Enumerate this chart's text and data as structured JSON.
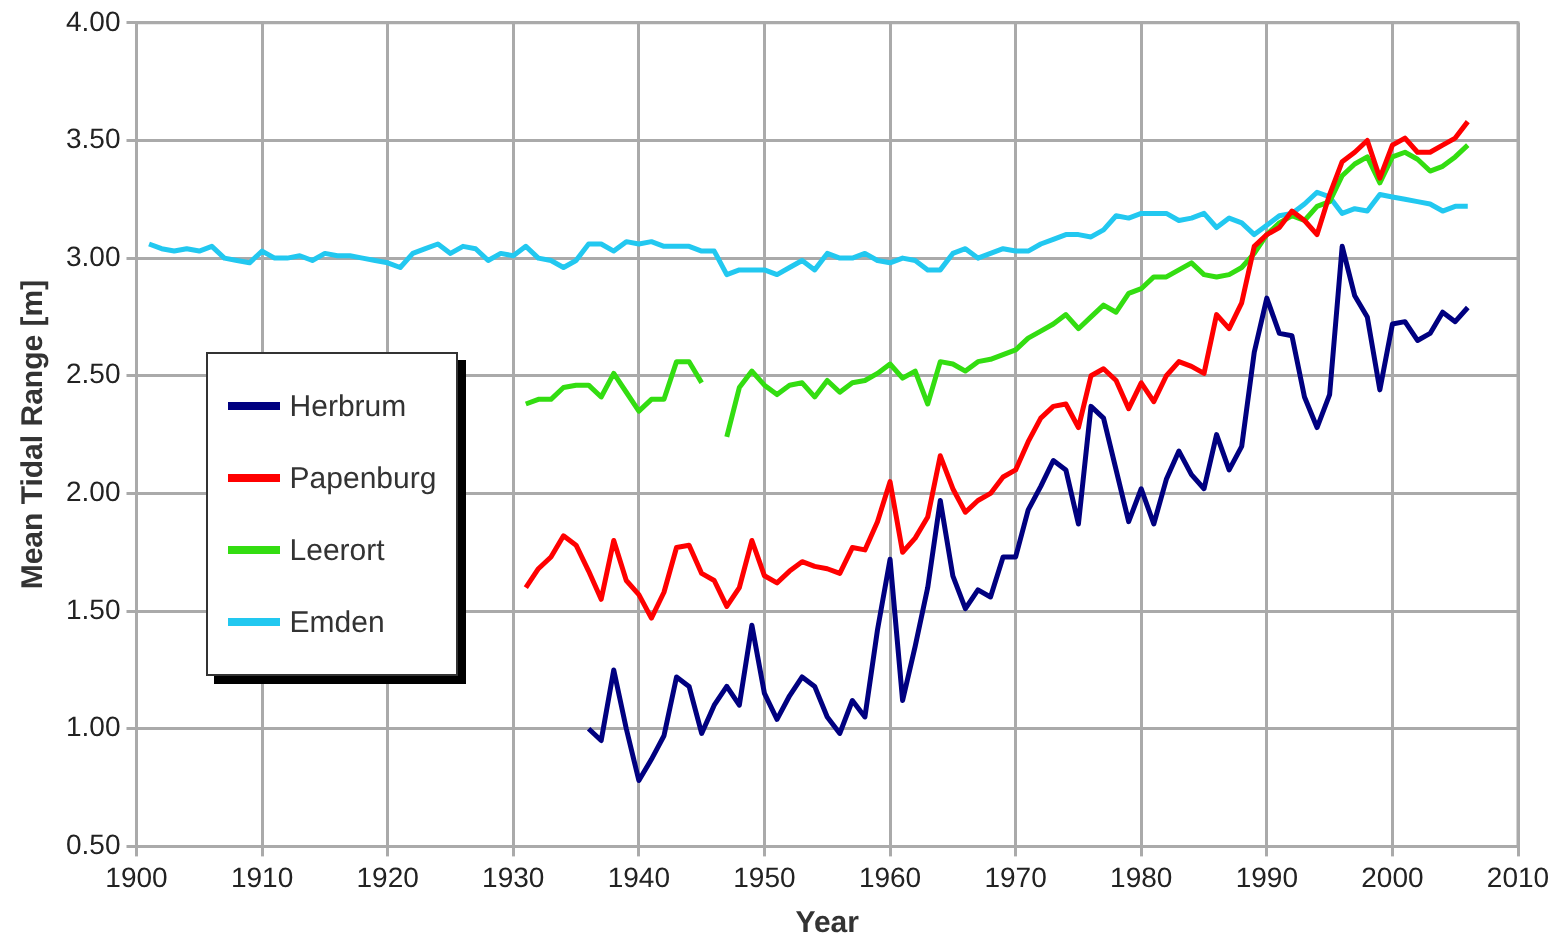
{
  "chart_data": {
    "type": "line",
    "xlabel": "Year",
    "ylabel": "Mean Tidal Range [m]",
    "x": [
      1901,
      1902,
      1903,
      1904,
      1905,
      1906,
      1907,
      1908,
      1909,
      1910,
      1911,
      1912,
      1913,
      1914,
      1915,
      1916,
      1917,
      1918,
      1919,
      1920,
      1921,
      1922,
      1923,
      1924,
      1925,
      1926,
      1927,
      1928,
      1929,
      1930,
      1931,
      1932,
      1933,
      1934,
      1935,
      1936,
      1937,
      1938,
      1939,
      1940,
      1941,
      1942,
      1943,
      1944,
      1945,
      1946,
      1947,
      1948,
      1949,
      1950,
      1951,
      1952,
      1953,
      1954,
      1955,
      1956,
      1957,
      1958,
      1959,
      1960,
      1961,
      1962,
      1963,
      1964,
      1965,
      1966,
      1967,
      1968,
      1969,
      1970,
      1971,
      1972,
      1973,
      1974,
      1975,
      1976,
      1977,
      1978,
      1979,
      1980,
      1981,
      1982,
      1983,
      1984,
      1985,
      1986,
      1987,
      1988,
      1989,
      1990,
      1991,
      1992,
      1993,
      1994,
      1995,
      1996,
      1997,
      1998,
      1999,
      2000,
      2001,
      2002,
      2003,
      2004,
      2005,
      2006
    ],
    "series": [
      {
        "name": "Herbrum",
        "color": "#000080",
        "values": [
          null,
          null,
          null,
          null,
          null,
          null,
          null,
          null,
          null,
          null,
          null,
          null,
          null,
          null,
          null,
          null,
          null,
          null,
          null,
          null,
          null,
          null,
          null,
          null,
          null,
          null,
          null,
          null,
          null,
          null,
          null,
          null,
          null,
          null,
          null,
          1.0,
          0.95,
          1.25,
          1.0,
          0.78,
          0.87,
          0.97,
          1.22,
          1.18,
          0.98,
          1.1,
          1.18,
          1.1,
          1.44,
          1.15,
          1.04,
          1.14,
          1.22,
          1.18,
          1.05,
          0.98,
          1.12,
          1.05,
          1.42,
          1.72,
          1.12,
          1.35,
          1.6,
          1.97,
          1.65,
          1.51,
          1.59,
          1.56,
          1.73,
          1.73,
          1.93,
          2.03,
          2.14,
          2.1,
          1.87,
          2.37,
          2.32,
          2.1,
          1.88,
          2.02,
          1.87,
          2.06,
          2.18,
          2.08,
          2.02,
          2.25,
          2.1,
          2.2,
          2.6,
          2.83,
          2.68,
          2.67,
          2.41,
          2.28,
          2.42,
          3.05,
          2.84,
          2.75,
          2.44,
          2.72,
          2.73,
          2.65,
          2.68,
          2.77,
          2.73,
          2.79
        ]
      },
      {
        "name": "Papenburg",
        "color": "#ff0000",
        "values": [
          null,
          null,
          null,
          null,
          null,
          null,
          null,
          null,
          null,
          null,
          null,
          null,
          null,
          null,
          null,
          null,
          null,
          null,
          null,
          null,
          null,
          null,
          null,
          null,
          null,
          null,
          null,
          null,
          null,
          null,
          1.6,
          1.68,
          1.73,
          1.82,
          1.78,
          1.67,
          1.55,
          1.8,
          1.63,
          1.57,
          1.47,
          1.58,
          1.77,
          1.78,
          1.66,
          1.63,
          1.52,
          1.6,
          1.8,
          1.65,
          1.62,
          1.67,
          1.71,
          1.69,
          1.68,
          1.66,
          1.77,
          1.76,
          1.88,
          2.05,
          1.75,
          1.81,
          1.9,
          2.16,
          2.02,
          1.92,
          1.97,
          2.0,
          2.07,
          2.1,
          2.22,
          2.32,
          2.37,
          2.38,
          2.28,
          2.5,
          2.53,
          2.48,
          2.36,
          2.47,
          2.39,
          2.5,
          2.56,
          2.54,
          2.51,
          2.76,
          2.7,
          2.81,
          3.05,
          3.1,
          3.13,
          3.2,
          3.16,
          3.1,
          3.27,
          3.41,
          3.45,
          3.5,
          3.34,
          3.48,
          3.51,
          3.45,
          3.45,
          3.48,
          3.51,
          3.58
        ]
      },
      {
        "name": "Leerort",
        "color": "#33dd11",
        "values": [
          null,
          null,
          null,
          null,
          null,
          null,
          null,
          null,
          null,
          null,
          null,
          null,
          null,
          null,
          null,
          null,
          null,
          null,
          null,
          null,
          null,
          null,
          null,
          null,
          null,
          null,
          null,
          null,
          null,
          null,
          2.38,
          2.4,
          2.4,
          2.45,
          2.46,
          2.46,
          2.41,
          2.51,
          2.43,
          2.35,
          2.4,
          2.4,
          2.56,
          2.56,
          2.47,
          null,
          2.24,
          2.45,
          2.52,
          2.46,
          2.42,
          2.46,
          2.47,
          2.41,
          2.48,
          2.43,
          2.47,
          2.48,
          2.51,
          2.55,
          2.49,
          2.52,
          2.38,
          2.56,
          2.55,
          2.52,
          2.56,
          2.57,
          2.59,
          2.61,
          2.66,
          2.69,
          2.72,
          2.76,
          2.7,
          2.75,
          2.8,
          2.77,
          2.85,
          2.87,
          2.92,
          2.92,
          2.95,
          2.98,
          2.93,
          2.92,
          2.93,
          2.96,
          3.02,
          3.1,
          3.15,
          3.18,
          3.16,
          3.22,
          3.24,
          3.35,
          3.4,
          3.43,
          3.32,
          3.43,
          3.45,
          3.42,
          3.37,
          3.39,
          3.43,
          3.48
        ]
      },
      {
        "name": "Emden",
        "color": "#22c8f0",
        "values": [
          3.06,
          3.04,
          3.03,
          3.04,
          3.03,
          3.05,
          3.0,
          2.99,
          2.98,
          3.03,
          3.0,
          3.0,
          3.01,
          2.99,
          3.02,
          3.01,
          3.01,
          3.0,
          2.99,
          2.98,
          2.96,
          3.02,
          3.04,
          3.06,
          3.02,
          3.05,
          3.04,
          2.99,
          3.02,
          3.01,
          3.05,
          3.0,
          2.99,
          2.96,
          2.99,
          3.06,
          3.06,
          3.03,
          3.07,
          3.06,
          3.07,
          3.05,
          3.05,
          3.05,
          3.03,
          3.03,
          2.93,
          2.95,
          2.95,
          2.95,
          2.93,
          2.96,
          2.99,
          2.95,
          3.02,
          3.0,
          3.0,
          3.02,
          2.99,
          2.98,
          3.0,
          2.99,
          2.95,
          2.95,
          3.02,
          3.04,
          3.0,
          3.02,
          3.04,
          3.03,
          3.03,
          3.06,
          3.08,
          3.1,
          3.1,
          3.09,
          3.12,
          3.18,
          3.17,
          3.19,
          3.19,
          3.19,
          3.16,
          3.17,
          3.19,
          3.13,
          3.17,
          3.15,
          3.1,
          3.14,
          3.18,
          3.19,
          3.23,
          3.28,
          3.26,
          3.19,
          3.21,
          3.2,
          3.27,
          3.26,
          3.25,
          3.24,
          3.23,
          3.2,
          3.22,
          3.22
        ]
      }
    ],
    "xlim": [
      1900,
      2010
    ],
    "xticks": [
      1900,
      1910,
      1920,
      1930,
      1940,
      1950,
      1960,
      1970,
      1980,
      1990,
      2000,
      2010
    ],
    "ylim": [
      0.5,
      4.0
    ],
    "yticks": [
      {
        "value": 0.5,
        "label": "0.50"
      },
      {
        "value": 1.0,
        "label": "1.00"
      },
      {
        "value": 1.5,
        "label": "1.50"
      },
      {
        "value": 2.0,
        "label": "2.00"
      },
      {
        "value": 2.5,
        "label": "2.50"
      },
      {
        "value": 3.0,
        "label": "3.00"
      },
      {
        "value": 3.5,
        "label": "3.50"
      },
      {
        "value": 4.0,
        "label": "4.00"
      }
    ],
    "grid": true,
    "legend": "left",
    "marker": "none",
    "line_style": "solid"
  }
}
